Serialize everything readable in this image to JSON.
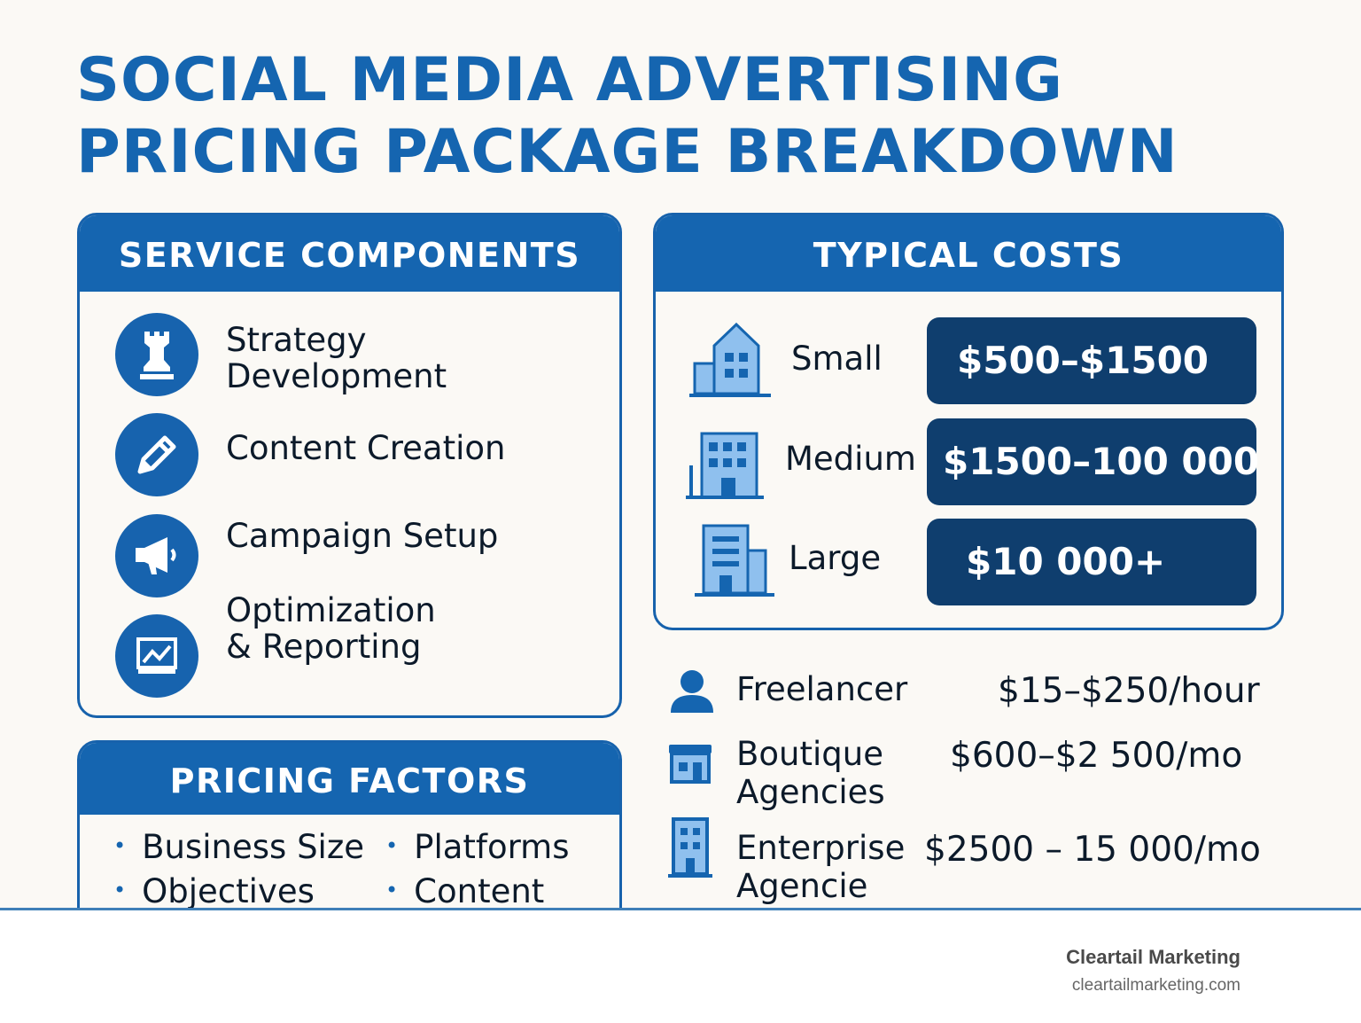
{
  "title": {
    "line1": "SOCIAL MEDIA ADVERTISING",
    "line2": "PRICING PACKAGE BREAKDOWN"
  },
  "service_components": {
    "heading": "SERVICE COMPONENTS",
    "items": [
      {
        "icon": "chess-rook-icon",
        "line1": "Strategy",
        "line2": "Development"
      },
      {
        "icon": "pencil-icon",
        "line1": "Content Creation",
        "line2": ""
      },
      {
        "icon": "megaphone-icon",
        "line1": "Campaign Setup",
        "line2": ""
      },
      {
        "icon": "chart-monitor-icon",
        "line1": "Optimization",
        "line2": "& Reporting"
      }
    ]
  },
  "typical_costs": {
    "heading": "TYPICAL COSTS",
    "rows": [
      {
        "icon": "small-building-icon",
        "label": "Small",
        "price": "$500–$1500"
      },
      {
        "icon": "medium-building-icon",
        "label": "Medium",
        "price": "$1500–100 000"
      },
      {
        "icon": "large-building-icon",
        "label": "Large",
        "price": "$10 000+"
      }
    ]
  },
  "pricing_factors": {
    "heading": "PRICING FACTORS",
    "items": [
      "Business Size",
      "Platforms",
      "Objectives",
      "Content"
    ]
  },
  "providers": [
    {
      "icon": "person-icon",
      "line1": "Freelancer",
      "line2": "",
      "price": "$15–$250/hour"
    },
    {
      "icon": "storefront-icon",
      "line1": "Boutique",
      "line2": "Agencies",
      "price": "$600–$2 500/mo"
    },
    {
      "icon": "office-tower-icon",
      "line1": "Enterprise",
      "line2": "Agencie",
      "price": "$2500 – 15 000/mo"
    }
  ],
  "footer": {
    "brand": "Cleartail Marketing",
    "url": "cleartailmarketing.com"
  },
  "colors": {
    "primary_blue": "#1565b0",
    "dark_navy": "#0f3e6e",
    "background": "#fbf9f5",
    "icon_light_blue": "#8fc0ee"
  }
}
